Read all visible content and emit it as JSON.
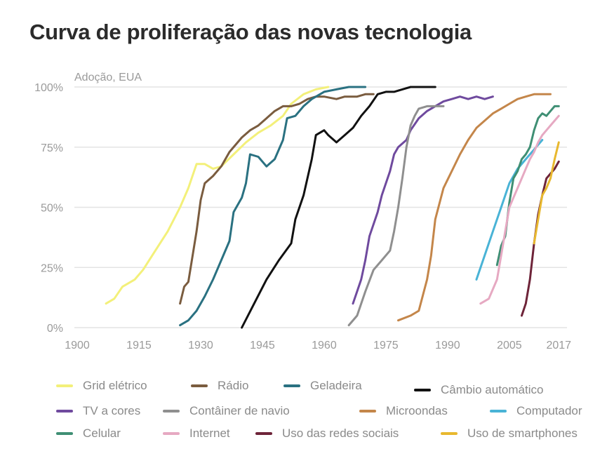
{
  "title": "Curva de proliferação das novas tecnologia",
  "chart_data": {
    "type": "line",
    "ylabel": "Adoção, EUA",
    "xlim": [
      1900,
      2019
    ],
    "ylim": [
      0,
      100
    ],
    "x_ticks": [
      1900,
      1915,
      1930,
      1945,
      1960,
      1975,
      1990,
      2005,
      2017
    ],
    "y_ticks": [
      0,
      25,
      50,
      75,
      100
    ],
    "y_tick_labels": [
      "0%",
      "25%",
      "50%",
      "75%",
      "100%"
    ],
    "grid": "horizontal",
    "legend_position": "bottom",
    "series": [
      {
        "name": "Grid elétrico",
        "color": "#f3f07a",
        "points": [
          [
            1907,
            10
          ],
          [
            1909,
            12
          ],
          [
            1911,
            17
          ],
          [
            1914,
            20
          ],
          [
            1916,
            24
          ],
          [
            1919,
            32
          ],
          [
            1922,
            40
          ],
          [
            1925,
            50
          ],
          [
            1927,
            58
          ],
          [
            1929,
            68
          ],
          [
            1931,
            68
          ],
          [
            1933,
            66
          ],
          [
            1935,
            67
          ],
          [
            1938,
            72
          ],
          [
            1941,
            77
          ],
          [
            1944,
            81
          ],
          [
            1947,
            84
          ],
          [
            1950,
            88
          ],
          [
            1952,
            93
          ],
          [
            1955,
            97
          ],
          [
            1958,
            99
          ],
          [
            1961,
            100
          ]
        ]
      },
      {
        "name": "Rádio",
        "color": "#7a5c3f",
        "points": [
          [
            1925,
            10
          ],
          [
            1926,
            17
          ],
          [
            1927,
            19
          ],
          [
            1929,
            40
          ],
          [
            1930,
            53
          ],
          [
            1931,
            60
          ],
          [
            1933,
            63
          ],
          [
            1935,
            67
          ],
          [
            1937,
            73
          ],
          [
            1940,
            79
          ],
          [
            1942,
            82
          ],
          [
            1944,
            84
          ],
          [
            1946,
            87
          ],
          [
            1948,
            90
          ],
          [
            1950,
            92
          ],
          [
            1952,
            92
          ],
          [
            1954,
            93
          ],
          [
            1956,
            95
          ],
          [
            1958,
            96
          ],
          [
            1960,
            96
          ],
          [
            1963,
            95
          ],
          [
            1965,
            96
          ],
          [
            1968,
            96
          ],
          [
            1970,
            97
          ],
          [
            1972,
            97
          ]
        ]
      },
      {
        "name": "Geladeira",
        "color": "#2a7181",
        "points": [
          [
            1925,
            1
          ],
          [
            1927,
            3
          ],
          [
            1929,
            7
          ],
          [
            1931,
            13
          ],
          [
            1933,
            20
          ],
          [
            1935,
            28
          ],
          [
            1937,
            36
          ],
          [
            1938,
            48
          ],
          [
            1940,
            54
          ],
          [
            1941,
            60
          ],
          [
            1942,
            72
          ],
          [
            1944,
            71
          ],
          [
            1946,
            67
          ],
          [
            1948,
            70
          ],
          [
            1950,
            78
          ],
          [
            1951,
            87
          ],
          [
            1953,
            88
          ],
          [
            1955,
            92
          ],
          [
            1957,
            95
          ],
          [
            1960,
            98
          ],
          [
            1963,
            99
          ],
          [
            1966,
            100
          ],
          [
            1970,
            100
          ]
        ]
      },
      {
        "name": "Câmbio automático",
        "color": "#111111",
        "points": [
          [
            1940,
            0
          ],
          [
            1943,
            10
          ],
          [
            1946,
            20
          ],
          [
            1949,
            28
          ],
          [
            1952,
            35
          ],
          [
            1953,
            45
          ],
          [
            1955,
            55
          ],
          [
            1957,
            70
          ],
          [
            1958,
            80
          ],
          [
            1960,
            82
          ],
          [
            1961,
            80
          ],
          [
            1963,
            77
          ],
          [
            1965,
            80
          ],
          [
            1967,
            83
          ],
          [
            1969,
            88
          ],
          [
            1971,
            92
          ],
          [
            1973,
            97
          ],
          [
            1975,
            98
          ],
          [
            1977,
            98
          ],
          [
            1979,
            99
          ],
          [
            1981,
            100
          ],
          [
            1987,
            100
          ]
        ]
      },
      {
        "name": "TV a cores",
        "color": "#6f4a9e",
        "points": [
          [
            1967,
            10
          ],
          [
            1969,
            20
          ],
          [
            1970,
            28
          ],
          [
            1971,
            38
          ],
          [
            1973,
            48
          ],
          [
            1974,
            55
          ],
          [
            1976,
            65
          ],
          [
            1977,
            72
          ],
          [
            1978,
            75
          ],
          [
            1980,
            78
          ],
          [
            1981,
            82
          ],
          [
            1983,
            87
          ],
          [
            1985,
            90
          ],
          [
            1987,
            92
          ],
          [
            1989,
            94
          ],
          [
            1991,
            95
          ],
          [
            1993,
            96
          ],
          [
            1995,
            95
          ],
          [
            1997,
            96
          ],
          [
            1999,
            95
          ],
          [
            2001,
            96
          ]
        ]
      },
      {
        "name": "Contâiner de navio",
        "color": "#8f8f8f",
        "points": [
          [
            1966,
            1
          ],
          [
            1968,
            5
          ],
          [
            1970,
            15
          ],
          [
            1972,
            24
          ],
          [
            1974,
            28
          ],
          [
            1976,
            32
          ],
          [
            1977,
            40
          ],
          [
            1978,
            50
          ],
          [
            1979,
            62
          ],
          [
            1980,
            75
          ],
          [
            1981,
            84
          ],
          [
            1982,
            88
          ],
          [
            1983,
            91
          ],
          [
            1985,
            92
          ],
          [
            1987,
            92
          ],
          [
            1989,
            92
          ]
        ]
      },
      {
        "name": "Microondas",
        "color": "#c4864a",
        "points": [
          [
            1978,
            3
          ],
          [
            1981,
            5
          ],
          [
            1983,
            7
          ],
          [
            1985,
            20
          ],
          [
            1986,
            30
          ],
          [
            1987,
            45
          ],
          [
            1989,
            58
          ],
          [
            1991,
            65
          ],
          [
            1993,
            72
          ],
          [
            1995,
            78
          ],
          [
            1997,
            83
          ],
          [
            1999,
            86
          ],
          [
            2001,
            89
          ],
          [
            2003,
            91
          ],
          [
            2005,
            93
          ],
          [
            2007,
            95
          ],
          [
            2009,
            96
          ],
          [
            2011,
            97
          ],
          [
            2013,
            97
          ],
          [
            2015,
            97
          ]
        ]
      },
      {
        "name": "Computador",
        "color": "#49b3d6",
        "points": [
          [
            1997,
            20
          ],
          [
            1999,
            30
          ],
          [
            2001,
            40
          ],
          [
            2003,
            50
          ],
          [
            2005,
            60
          ],
          [
            2007,
            66
          ],
          [
            2009,
            70
          ],
          [
            2011,
            74
          ],
          [
            2013,
            78
          ]
        ]
      },
      {
        "name": "Celular",
        "color": "#3f8f74",
        "points": [
          [
            2002,
            26
          ],
          [
            2003,
            34
          ],
          [
            2004,
            38
          ],
          [
            2005,
            52
          ],
          [
            2006,
            62
          ],
          [
            2007,
            65
          ],
          [
            2008,
            70
          ],
          [
            2009,
            72
          ],
          [
            2010,
            75
          ],
          [
            2011,
            82
          ],
          [
            2012,
            87
          ],
          [
            2013,
            89
          ],
          [
            2014,
            88
          ],
          [
            2015,
            90
          ],
          [
            2016,
            92
          ],
          [
            2017,
            92
          ]
        ]
      },
      {
        "name": "Internet",
        "color": "#e6a9c2",
        "points": [
          [
            1998,
            10
          ],
          [
            2000,
            12
          ],
          [
            2002,
            20
          ],
          [
            2003,
            30
          ],
          [
            2004,
            40
          ],
          [
            2005,
            50
          ],
          [
            2006,
            54
          ],
          [
            2007,
            58
          ],
          [
            2008,
            62
          ],
          [
            2009,
            66
          ],
          [
            2010,
            70
          ],
          [
            2011,
            73
          ],
          [
            2012,
            77
          ],
          [
            2013,
            80
          ],
          [
            2014,
            82
          ],
          [
            2015,
            84
          ],
          [
            2016,
            86
          ],
          [
            2017,
            88
          ]
        ]
      },
      {
        "name": "Uso das redes sociais",
        "color": "#6e2439",
        "points": [
          [
            2008,
            5
          ],
          [
            2009,
            10
          ],
          [
            2010,
            20
          ],
          [
            2011,
            35
          ],
          [
            2012,
            47
          ],
          [
            2013,
            55
          ],
          [
            2014,
            62
          ],
          [
            2015,
            64
          ],
          [
            2016,
            66
          ],
          [
            2017,
            69
          ]
        ]
      },
      {
        "name": "Uso de smartphones",
        "color": "#e8b82f",
        "points": [
          [
            2011,
            35
          ],
          [
            2012,
            45
          ],
          [
            2013,
            55
          ],
          [
            2014,
            58
          ],
          [
            2015,
            62
          ],
          [
            2016,
            70
          ],
          [
            2017,
            77
          ]
        ]
      }
    ]
  }
}
